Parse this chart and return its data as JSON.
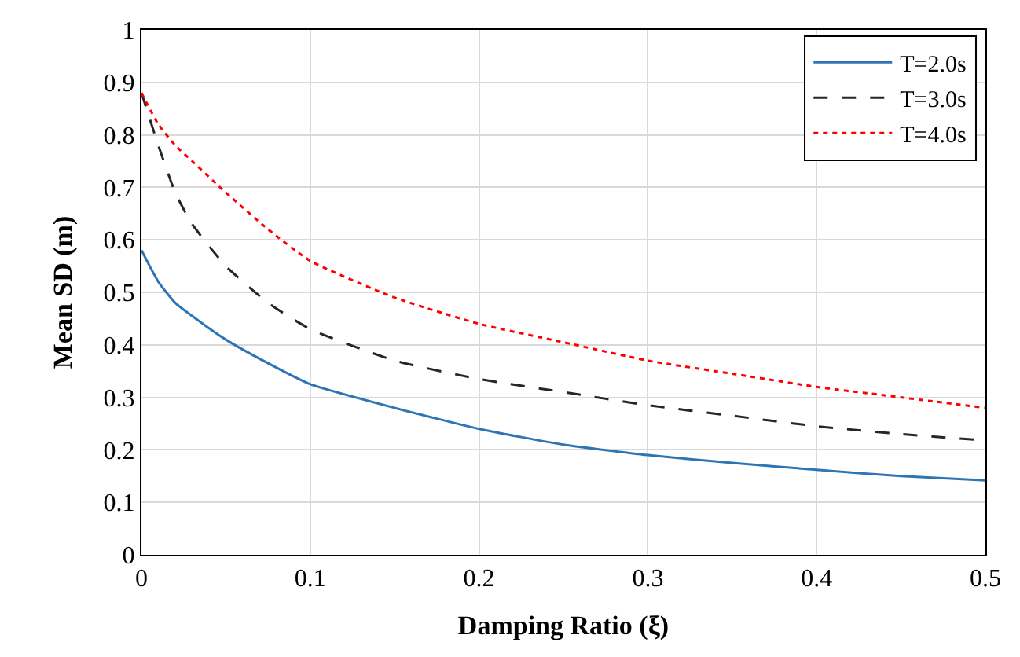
{
  "chart_data": {
    "type": "line",
    "xlabel": "Damping Ratio (ξ)",
    "ylabel": "Mean SD (m)",
    "x": [
      0,
      0.01,
      0.02,
      0.03,
      0.05,
      0.075,
      0.1,
      0.15,
      0.2,
      0.25,
      0.3,
      0.35,
      0.4,
      0.45,
      0.5
    ],
    "series": [
      {
        "name": "T=2.0s",
        "color": "#2e75b6",
        "line_style": "solid",
        "values": [
          0.58,
          0.52,
          0.48,
          0.455,
          0.41,
          0.365,
          0.325,
          0.28,
          0.24,
          0.21,
          0.19,
          0.175,
          0.162,
          0.15,
          0.142
        ]
      },
      {
        "name": "T=3.0s",
        "color": "#262626",
        "line_style": "dashed",
        "values": [
          0.88,
          0.78,
          0.69,
          0.63,
          0.55,
          0.48,
          0.43,
          0.37,
          0.335,
          0.31,
          0.285,
          0.265,
          0.245,
          0.23,
          0.218
        ]
      },
      {
        "name": "T=4.0s",
        "color": "#ff0000",
        "line_style": "dotted",
        "values": [
          0.88,
          0.82,
          0.78,
          0.75,
          0.69,
          0.62,
          0.56,
          0.49,
          0.44,
          0.405,
          0.37,
          0.345,
          0.32,
          0.3,
          0.28
        ]
      }
    ],
    "xlim": [
      0,
      0.5
    ],
    "xticks": [
      0,
      0.1,
      0.2,
      0.3,
      0.4,
      0.5
    ],
    "ylim": [
      0,
      1
    ],
    "yticks": [
      0,
      0.1,
      0.2,
      0.3,
      0.4,
      0.5,
      0.6,
      0.7,
      0.8,
      0.9,
      1
    ],
    "grid": true,
    "legend": "top right",
    "marker": "none"
  }
}
